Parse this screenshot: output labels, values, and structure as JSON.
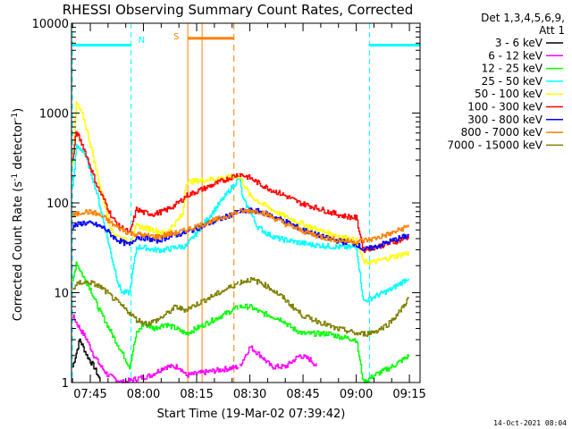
{
  "chart_data": {
    "type": "line",
    "title": "RHESSI Observing Summary Count Rates, Corrected",
    "xlabel": "Start Time (19-Mar-02 07:39:42)",
    "ylabel": "Corrected Count Rate (s⁻¹ detector⁻¹)",
    "ylabel_main": "Corrected Count Rate (s",
    "ylabel_sup1": "-1",
    "ylabel_mid": " detector",
    "ylabel_sup2": "-1",
    "ylabel_end": ")",
    "y_scale": "log",
    "ylim": [
      1,
      10000
    ],
    "xlim": [
      "07:39:42",
      "09:18:00"
    ],
    "x_ticks": [
      "07:45",
      "08:00",
      "08:15",
      "08:30",
      "08:45",
      "09:00",
      "09:15"
    ],
    "y_ticks": [
      "1",
      "10",
      "100",
      "1000",
      "10000"
    ],
    "legend_header_1": "Det 1,3,4,5,6,9,",
    "legend_header_2": "Att 1",
    "legend_placement": "right",
    "footer_date": "14-Oct-2021 08:04",
    "annotations": {
      "night_label": "N",
      "saa_label": "S",
      "night_color": "#00ffff",
      "saa_color": "#ff8000",
      "night_intervals": [
        [
          "07:39:42",
          "07:56:30"
        ],
        [
          "09:03:30",
          "09:18:00"
        ]
      ],
      "night_level": 5700,
      "saa_interval": [
        "08:12:30",
        "08:25:30"
      ],
      "saa_level": 6800,
      "data_gap": [
        "08:13:00",
        "08:27:00"
      ]
    },
    "series": [
      {
        "name": "3 - 6 keV",
        "color": "#000000",
        "x": [
          "07:40",
          "07:42",
          "07:44",
          "07:46",
          "07:48"
        ],
        "y": [
          1.5,
          3.0,
          2.0,
          1.5,
          1.0
        ]
      },
      {
        "name": "6 - 12 keV",
        "color": "#ff00ff",
        "x": [
          "07:40",
          "07:42",
          "07:44",
          "07:46",
          "07:48",
          "07:50",
          "07:54",
          "07:58",
          "08:02",
          "08:06",
          "08:10",
          "08:12",
          "08:27",
          "08:30",
          "08:33",
          "08:36",
          "08:40",
          "08:44",
          "08:47",
          "08:49"
        ],
        "y": [
          5.5,
          4.0,
          3.0,
          2.0,
          1.5,
          1.2,
          1.0,
          1.1,
          1.2,
          1.5,
          1.5,
          1.2,
          1.5,
          2.5,
          2.0,
          1.5,
          1.5,
          2.0,
          1.8,
          1.5
        ]
      },
      {
        "name": "12 - 25 keV",
        "color": "#00ff00",
        "x": [
          "07:40",
          "07:41",
          "07:43",
          "07:45",
          "07:47",
          "07:49",
          "07:51",
          "07:53",
          "07:55",
          "07:56",
          "07:58",
          "08:00",
          "08:03",
          "08:06",
          "08:09",
          "08:12",
          "08:27",
          "08:30",
          "08:33",
          "08:36",
          "08:39",
          "08:42",
          "08:45",
          "08:48",
          "08:52",
          "08:56",
          "09:00",
          "09:02",
          "09:05",
          "09:10",
          "09:15"
        ],
        "y": [
          13,
          22,
          15,
          11,
          7,
          5,
          3.5,
          2.5,
          1.8,
          1.5,
          3.5,
          4.5,
          4.0,
          4.5,
          4.0,
          3.5,
          7.0,
          7.0,
          6.0,
          5.5,
          5.0,
          4.0,
          3.5,
          3.5,
          3.5,
          3.2,
          3.0,
          1.0,
          1.2,
          1.5,
          2.0
        ]
      },
      {
        "name": "25 - 50 keV",
        "color": "#00ffff",
        "x": [
          "07:40",
          "07:41",
          "07:43",
          "07:45",
          "07:47",
          "07:49",
          "07:51",
          "07:53",
          "07:54",
          "07:56",
          "07:58",
          "08:00",
          "08:03",
          "08:06",
          "08:09",
          "08:12",
          "08:27",
          "08:28",
          "08:30",
          "08:32",
          "08:35",
          "08:38",
          "08:41",
          "08:44",
          "08:48",
          "08:52",
          "08:56",
          "09:00",
          "09:02",
          "09:05",
          "09:10",
          "09:15"
        ],
        "y": [
          150,
          420,
          380,
          230,
          120,
          55,
          25,
          12,
          10,
          10,
          32,
          32,
          30,
          30,
          32,
          33,
          190,
          110,
          80,
          55,
          45,
          40,
          38,
          36,
          34,
          33,
          32,
          32,
          8,
          9,
          11,
          15
        ]
      },
      {
        "name": "50 - 100 keV",
        "color": "#ffff00",
        "x": [
          "07:40",
          "07:41",
          "07:43",
          "07:45",
          "07:47",
          "07:49",
          "07:51",
          "07:53",
          "07:55",
          "07:56",
          "07:58",
          "08:00",
          "08:03",
          "08:06",
          "08:09",
          "08:11",
          "08:12",
          "08:27",
          "08:30",
          "08:33",
          "08:36",
          "08:40",
          "08:44",
          "08:48",
          "08:52",
          "08:56",
          "09:00",
          "09:02",
          "09:05",
          "09:10",
          "09:15"
        ],
        "y": [
          250,
          1300,
          900,
          450,
          200,
          95,
          48,
          42,
          38,
          36,
          55,
          53,
          50,
          46,
          60,
          75,
          170,
          200,
          120,
          100,
          85,
          70,
          60,
          52,
          46,
          42,
          38,
          22,
          22,
          25,
          28
        ]
      },
      {
        "name": "100 - 300 keV",
        "color": "#ff0000",
        "x": [
          "07:40",
          "07:41",
          "07:43",
          "07:45",
          "07:47",
          "07:49",
          "07:51",
          "07:53",
          "07:55",
          "07:56",
          "07:58",
          "08:00",
          "08:03",
          "08:06",
          "08:09",
          "08:11",
          "08:12",
          "08:27",
          "08:30",
          "08:33",
          "08:36",
          "08:40",
          "08:44",
          "08:48",
          "08:52",
          "08:56",
          "09:00",
          "09:02",
          "09:05",
          "09:10",
          "09:15"
        ],
        "y": [
          300,
          620,
          420,
          250,
          150,
          105,
          70,
          55,
          50,
          45,
          85,
          78,
          75,
          82,
          95,
          110,
          120,
          210,
          190,
          160,
          140,
          120,
          100,
          90,
          80,
          72,
          68,
          30,
          32,
          36,
          42
        ]
      },
      {
        "name": "300 - 800 keV",
        "color": "#0000ff",
        "x": [
          "07:40",
          "07:43",
          "07:46",
          "07:49",
          "07:52",
          "07:55",
          "07:56",
          "07:58",
          "08:01",
          "08:04",
          "08:07",
          "08:10",
          "08:12",
          "08:27",
          "08:30",
          "08:33",
          "08:36",
          "08:40",
          "08:44",
          "08:48",
          "08:52",
          "08:56",
          "09:00",
          "09:02",
          "09:05",
          "09:10",
          "09:15"
        ],
        "y": [
          55,
          60,
          58,
          52,
          40,
          35,
          34,
          42,
          40,
          38,
          42,
          45,
          47,
          80,
          82,
          80,
          72,
          62,
          52,
          45,
          40,
          37,
          35,
          30,
          32,
          38,
          44
        ]
      },
      {
        "name": "800 - 7000 keV",
        "color": "#ff8000",
        "x": [
          "07:40",
          "07:43",
          "07:46",
          "07:49",
          "07:52",
          "07:55",
          "07:56",
          "07:58",
          "08:01",
          "08:04",
          "08:07",
          "08:10",
          "08:12",
          "08:27",
          "08:30",
          "08:33",
          "08:36",
          "08:40",
          "08:44",
          "08:48",
          "08:52",
          "08:56",
          "09:00",
          "09:02",
          "09:05",
          "09:10",
          "09:15"
        ],
        "y": [
          72,
          80,
          78,
          68,
          55,
          48,
          46,
          45,
          43,
          42,
          45,
          47,
          50,
          80,
          82,
          80,
          70,
          58,
          50,
          44,
          40,
          38,
          37,
          38,
          40,
          46,
          56
        ]
      },
      {
        "name": "7000 - 15000 keV",
        "color": "#808000",
        "x": [
          "07:40",
          "07:42",
          "07:45",
          "07:48",
          "07:51",
          "07:54",
          "07:56",
          "07:58",
          "08:01",
          "08:04",
          "08:07",
          "08:09",
          "08:11",
          "08:12",
          "08:27",
          "08:30",
          "08:33",
          "08:36",
          "08:39",
          "08:42",
          "08:45",
          "08:48",
          "08:51",
          "08:54",
          "08:57",
          "09:00",
          "09:03",
          "09:06",
          "09:09",
          "09:12",
          "09:15"
        ],
        "y": [
          11,
          13,
          13,
          11.5,
          9,
          7,
          6,
          5,
          4.5,
          5,
          6,
          7,
          6.5,
          6.5,
          13,
          14,
          13,
          11,
          9,
          7,
          5.5,
          5,
          4.5,
          4,
          3.8,
          3.5,
          3.5,
          3.8,
          4.5,
          6,
          9
        ]
      }
    ]
  }
}
